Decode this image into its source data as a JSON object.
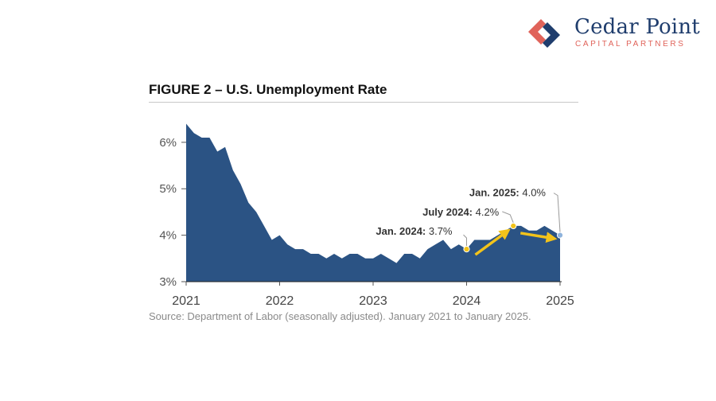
{
  "brand": {
    "name": "Cedar Point",
    "subtitle": "CAPITAL PARTNERS",
    "colors": {
      "navy": "#1f3d6d",
      "coral": "#e0635a"
    }
  },
  "figure": {
    "title": "FIGURE 2 – U.S. Unemployment Rate",
    "source": "Source: Department of Labor (seasonally adjusted). January 2021 to January 2025."
  },
  "chart_data": {
    "type": "area",
    "title": "FIGURE 2 – U.S. Unemployment Rate",
    "ylim": [
      3,
      6.7
    ],
    "xlim": [
      "2021-01",
      "2025-01"
    ],
    "y_ticks": [
      {
        "v": 3,
        "label": "3%"
      },
      {
        "v": 4,
        "label": "4%"
      },
      {
        "v": 5,
        "label": "5%"
      },
      {
        "v": 6,
        "label": "6%"
      }
    ],
    "x_ticks": [
      {
        "v": "2021-01",
        "label": "2021"
      },
      {
        "v": "2022-01",
        "label": "2022"
      },
      {
        "v": "2023-01",
        "label": "2023"
      },
      {
        "v": "2024-01",
        "label": "2024"
      },
      {
        "v": "2025-01",
        "label": "2025"
      }
    ],
    "grid": false,
    "colors": {
      "fill": "#2b5384",
      "annotation": "#f2c31b",
      "endpoint": "#8fb3dc"
    },
    "series": [
      {
        "x": [
          "2021-01",
          "2021-02",
          "2021-03",
          "2021-04",
          "2021-05",
          "2021-06",
          "2021-07",
          "2021-08",
          "2021-09",
          "2021-10",
          "2021-11",
          "2021-12",
          "2022-01",
          "2022-02",
          "2022-03",
          "2022-04",
          "2022-05",
          "2022-06",
          "2022-07",
          "2022-08",
          "2022-09",
          "2022-10",
          "2022-11",
          "2022-12",
          "2023-01",
          "2023-02",
          "2023-03",
          "2023-04",
          "2023-05",
          "2023-06",
          "2023-07",
          "2023-08",
          "2023-09",
          "2023-10",
          "2023-11",
          "2023-12",
          "2024-01",
          "2024-02",
          "2024-03",
          "2024-04",
          "2024-05",
          "2024-06",
          "2024-07",
          "2024-08",
          "2024-09",
          "2024-10",
          "2024-11",
          "2024-12",
          "2025-01"
        ],
        "values": [
          6.4,
          6.2,
          6.1,
          6.1,
          5.8,
          5.9,
          5.4,
          5.1,
          4.7,
          4.5,
          4.2,
          3.9,
          4.0,
          3.8,
          3.7,
          3.7,
          3.6,
          3.6,
          3.5,
          3.6,
          3.5,
          3.6,
          3.6,
          3.5,
          3.5,
          3.6,
          3.5,
          3.4,
          3.6,
          3.6,
          3.5,
          3.7,
          3.8,
          3.9,
          3.7,
          3.8,
          3.7,
          3.9,
          3.9,
          3.9,
          4.0,
          4.1,
          4.2,
          4.2,
          4.1,
          4.1,
          4.2,
          4.1,
          4.0
        ]
      }
    ],
    "annotations": [
      {
        "x": "2024-01",
        "y": 3.7,
        "label_bold": "Jan. 2024:",
        "label_rest": " 3.7%"
      },
      {
        "x": "2024-07",
        "y": 4.2,
        "label_bold": "July 2024:",
        "label_rest": " 4.2%"
      },
      {
        "x": "2025-01",
        "y": 4.0,
        "label_bold": "Jan. 2025:",
        "label_rest": " 4.0%"
      }
    ]
  }
}
